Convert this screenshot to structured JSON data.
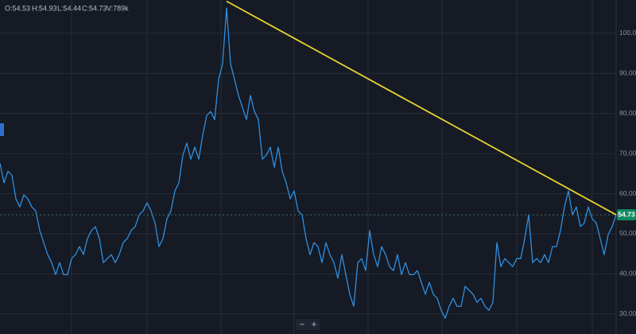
{
  "chart_data": {
    "type": "line",
    "header": {
      "open": "O:54.53",
      "high": "H:54.93",
      "low": "L:54.44",
      "close": "C:54.73",
      "volume": "V:789k"
    },
    "color": "#2f8fe0",
    "values": [
      67.6,
      62.7,
      65.6,
      64.6,
      58.7,
      56.7,
      59.7,
      58.7,
      56.7,
      55.7,
      50.8,
      47.8,
      44.8,
      42.8,
      39.8,
      42.8,
      39.8,
      39.8,
      43.8,
      44.8,
      46.8,
      44.8,
      48.8,
      50.8,
      51.8,
      48.8,
      42.8,
      43.8,
      44.8,
      42.8,
      44.8,
      47.8,
      48.8,
      50.8,
      51.8,
      54.7,
      55.7,
      57.7,
      55.7,
      52.7,
      46.8,
      48.8,
      53.7,
      55.7,
      60.7,
      62.7,
      69.6,
      72.6,
      68.6,
      71.6,
      68.6,
      74.6,
      79.5,
      80.5,
      78.5,
      88.5,
      92.4,
      106.3,
      92.4,
      88.5,
      84.5,
      81.5,
      78.5,
      84.5,
      80.5,
      78.5,
      68.6,
      69.6,
      71.6,
      66.6,
      71.6,
      65.6,
      62.7,
      58.7,
      60.7,
      55.7,
      54.7,
      48.8,
      44.8,
      47.8,
      46.8,
      42.8,
      47.8,
      44.8,
      42.8,
      38.9,
      44.8,
      39.8,
      34.9,
      31.9,
      42.8,
      43.8,
      40.8,
      50.8,
      44.8,
      41.8,
      46.8,
      44.8,
      41.8,
      40.8,
      44.8,
      39.8,
      42.8,
      39.8,
      39.8,
      40.8,
      37.9,
      34.9,
      37.9,
      34.9,
      33.9,
      30.9,
      28.9,
      31.9,
      33.9,
      31.9,
      31.9,
      36.9,
      35.9,
      34.9,
      32.9,
      33.9,
      31.9,
      30.9,
      32.9,
      47.8,
      41.8,
      43.8,
      42.8,
      41.8,
      43.8,
      43.8,
      48.8,
      54.7,
      42.8,
      43.8,
      42.8,
      44.8,
      42.8,
      46.8,
      46.8,
      50.8,
      56.7,
      60.7,
      54.7,
      56.7,
      51.8,
      52.7,
      56.7,
      53.7,
      52.7,
      48.8,
      44.8,
      49.8,
      51.8,
      54.73
    ],
    "last_value_label": "54.73",
    "last_value_color": "#0f8a5f",
    "trendline": {
      "x": [
        57,
        155
      ],
      "values": [
        108,
        54.73
      ],
      "color": "#e8d42e"
    },
    "ylim": [
      25,
      108.3
    ],
    "yticks": [
      {
        "value": 30,
        "label": "30,00"
      },
      {
        "value": 40,
        "label": "40,00"
      },
      {
        "value": 50,
        "label": "50,00"
      },
      {
        "value": 60,
        "label": "60,00"
      },
      {
        "value": 70,
        "label": "70,00"
      },
      {
        "value": 80,
        "label": "80,00"
      },
      {
        "value": 90,
        "label": "90,00"
      },
      {
        "value": 100,
        "label": "100,00"
      }
    ],
    "grid": true,
    "zoom_controls": [
      "−",
      "+"
    ]
  }
}
